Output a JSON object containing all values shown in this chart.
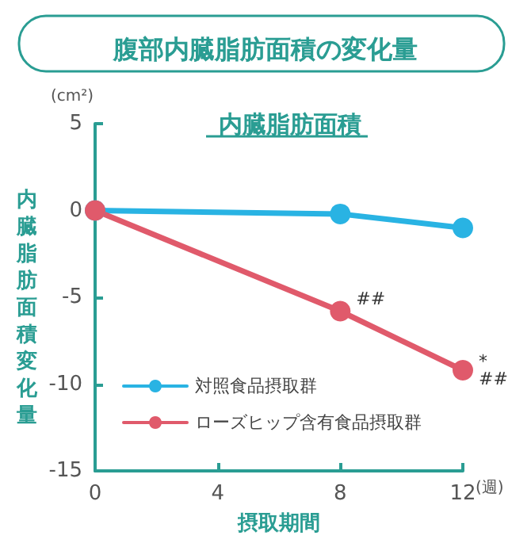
{
  "chart_data": {
    "type": "line",
    "title": "腹部内臓脂肪面積の変化量",
    "subtitle": "内臓脂肪面積",
    "xlabel": "摂取期間",
    "ylabel": "内臓脂肪面積変化量",
    "x": [
      0,
      8,
      12
    ],
    "series": [
      {
        "name": "対照食品摂取群",
        "color": "#29b3e3",
        "values": [
          0,
          -0.2,
          -1.0
        ]
      },
      {
        "name": "ローズヒップ含有食品摂取群",
        "color": "#e05a6b",
        "values": [
          0,
          -5.8,
          -9.2
        ]
      }
    ],
    "xlim": [
      0,
      12
    ],
    "xticks": [
      0,
      4,
      8,
      12
    ],
    "ylim": [
      -15,
      5
    ],
    "yticks": [
      -15,
      -10,
      -5,
      0,
      5
    ],
    "annotations": [
      "(cm²)",
      "(週)",
      {
        "text": "##",
        "x": 8,
        "y": -5.8
      },
      {
        "text": "*\n##",
        "x": 12,
        "y": -9.2
      }
    ],
    "grid": false,
    "legend": "bottom left",
    "marker": "circle",
    "line_style": "solid"
  }
}
